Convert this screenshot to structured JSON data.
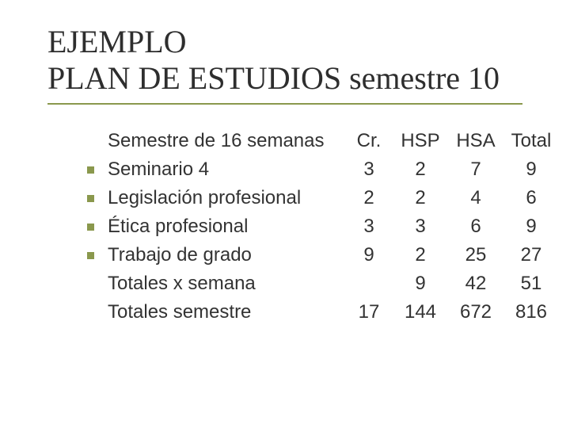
{
  "title_line1": "EJEMPLO",
  "title_line2": "PLAN DE ESTUDIOS semestre 10",
  "colors": {
    "accent": "#8a984d",
    "title_text": "#2e2e2e",
    "body_text": "#333333",
    "background": "#ffffff"
  },
  "typography": {
    "title_family": "Times New Roman",
    "title_size_pt": 30,
    "body_family": "Arial",
    "body_size_pt": 18
  },
  "table": {
    "headers": {
      "label": "Semestre de 16 semanas",
      "cr": "Cr.",
      "hsp": "HSP",
      "hsa": "HSA",
      "total": "Total"
    },
    "rows": [
      {
        "bullet": true,
        "label": "Seminario 4",
        "cr": "3",
        "hsp": "2",
        "hsa": "7",
        "total": "9"
      },
      {
        "bullet": true,
        "label": "Legislación profesional",
        "cr": "2",
        "hsp": "2",
        "hsa": "4",
        "total": "6"
      },
      {
        "bullet": true,
        "label": "Ética profesional",
        "cr": "3",
        "hsp": "3",
        "hsa": "6",
        "total": "9"
      },
      {
        "bullet": true,
        "label": "Trabajo de grado",
        "cr": "9",
        "hsp": "2",
        "hsa": "25",
        "total": "27"
      },
      {
        "bullet": false,
        "label": "Totales x semana",
        "cr": "",
        "hsp": "9",
        "hsa": "42",
        "total": "51"
      },
      {
        "bullet": false,
        "label": "Totales semestre",
        "cr": "17",
        "hsp": "144",
        "hsa": "672",
        "total": "816"
      }
    ]
  }
}
